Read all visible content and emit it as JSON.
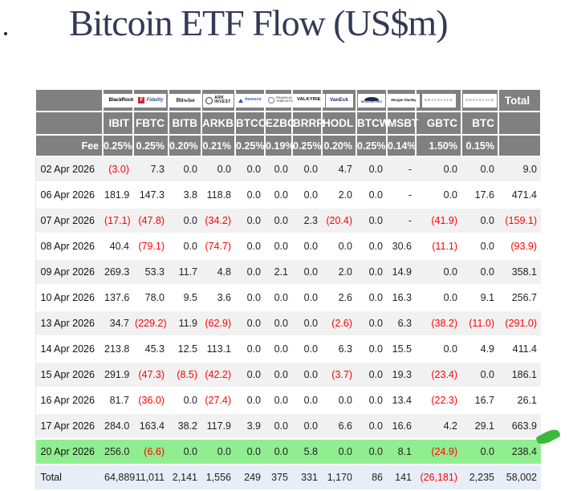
{
  "title": "Bitcoin ETF Flow (US$m)",
  "colors": {
    "header_gray": "#808080",
    "negative_red": "#ff0000",
    "highlight_green": "#90ee90",
    "total_row_bg": "#e8eef8",
    "stripe_gray": "#f1f1f1",
    "title_navy": "#333a56",
    "pen_mark_green": "#3db83d"
  },
  "table": {
    "fee_label": "Fee",
    "total_header_label": "Total",
    "columns": [
      {
        "ticker": "IBIT",
        "fee": "0.25%",
        "brand": "BlackRock"
      },
      {
        "ticker": "FBTC",
        "fee": "0.25%",
        "brand": "Fidelity",
        "brand_initial": "F"
      },
      {
        "ticker": "BITB",
        "fee": "0.20%",
        "brand": "Bitwise"
      },
      {
        "ticker": "ARKB",
        "fee": "0.21%",
        "brand": "ARK\nINVEST"
      },
      {
        "ticker": "BTCO",
        "fee": "0.25%",
        "brand": "Invesco"
      },
      {
        "ticker": "EZBC",
        "fee": "0.19%",
        "brand": "FRANKLIN\nTEMPLETON"
      },
      {
        "ticker": "BRRR",
        "fee": "0.25%",
        "brand": "VALKYRIE"
      },
      {
        "ticker": "HODL",
        "fee": "0.20%",
        "brand": "VanEck"
      },
      {
        "ticker": "BTCW",
        "fee": "0.25%",
        "brand": "WISDOMTREE"
      },
      {
        "ticker": "MSBT",
        "fee": "0.14%",
        "brand": "Morgan Stanley"
      },
      {
        "ticker": "GBTC",
        "fee": "1.50%",
        "brand": "GRAYSCALE"
      },
      {
        "ticker": "BTC",
        "fee": "0.15%",
        "brand": "GRAYSCALE"
      }
    ],
    "rows": [
      {
        "date": "02 Apr 2026",
        "values": [
          "(3.0)",
          "7.3",
          "0.0",
          "0.0",
          "0.0",
          "0.0",
          "0.0",
          "4.7",
          "0.0",
          "-",
          "0.0",
          "0.0",
          "9.0"
        ]
      },
      {
        "date": "06 Apr 2026",
        "values": [
          "181.9",
          "147.3",
          "3.8",
          "118.8",
          "0.0",
          "0.0",
          "0.0",
          "2.0",
          "0.0",
          "-",
          "0.0",
          "17.6",
          "471.4"
        ]
      },
      {
        "date": "07 Apr 2026",
        "values": [
          "(17.1)",
          "(47.8)",
          "0.0",
          "(34.2)",
          "0.0",
          "0.0",
          "2.3",
          "(20.4)",
          "0.0",
          "-",
          "(41.9)",
          "0.0",
          "(159.1)"
        ]
      },
      {
        "date": "08 Apr 2026",
        "values": [
          "40.4",
          "(79.1)",
          "0.0",
          "(74.7)",
          "0.0",
          "0.0",
          "0.0",
          "0.0",
          "0.0",
          "30.6",
          "(11.1)",
          "0.0",
          "(93.9)"
        ]
      },
      {
        "date": "09 Apr 2026",
        "values": [
          "269.3",
          "53.3",
          "11.7",
          "4.8",
          "0.0",
          "2.1",
          "0.0",
          "2.0",
          "0.0",
          "14.9",
          "0.0",
          "0.0",
          "358.1"
        ]
      },
      {
        "date": "10 Apr 2026",
        "values": [
          "137.6",
          "78.0",
          "9.5",
          "3.6",
          "0.0",
          "0.0",
          "0.0",
          "2.6",
          "0.0",
          "16.3",
          "0.0",
          "9.1",
          "256.7"
        ]
      },
      {
        "date": "13 Apr 2026",
        "values": [
          "34.7",
          "(229.2)",
          "11.9",
          "(62.9)",
          "0.0",
          "0.0",
          "0.0",
          "(2.6)",
          "0.0",
          "6.3",
          "(38.2)",
          "(11.0)",
          "(291.0)"
        ]
      },
      {
        "date": "14 Apr 2026",
        "values": [
          "213.8",
          "45.3",
          "12.5",
          "113.1",
          "0.0",
          "0.0",
          "0.0",
          "6.3",
          "0.0",
          "15.5",
          "0.0",
          "4.9",
          "411.4"
        ]
      },
      {
        "date": "15 Apr 2026",
        "values": [
          "291.9",
          "(47.3)",
          "(8.5)",
          "(42.2)",
          "0.0",
          "0.0",
          "0.0",
          "(3.7)",
          "0.0",
          "19.3",
          "(23.4)",
          "0.0",
          "186.1"
        ]
      },
      {
        "date": "16 Apr 2026",
        "values": [
          "81.7",
          "(36.0)",
          "0.0",
          "(27.4)",
          "0.0",
          "0.0",
          "0.0",
          "0.0",
          "0.0",
          "13.4",
          "(22.3)",
          "16.7",
          "26.1"
        ]
      },
      {
        "date": "17 Apr 2026",
        "values": [
          "284.0",
          "163.4",
          "38.2",
          "117.9",
          "3.9",
          "0.0",
          "0.0",
          "6.6",
          "0.0",
          "16.6",
          "4.2",
          "29.1",
          "663.9"
        ]
      },
      {
        "date": "20 Apr 2026",
        "highlight": "green",
        "values": [
          "256.0",
          "(6.6)",
          "0.0",
          "0.0",
          "0.0",
          "0.0",
          "5.8",
          "0.0",
          "0.0",
          "8.1",
          "(24.9)",
          "0.0",
          "238.4"
        ]
      }
    ],
    "total_row": {
      "label": "Total",
      "values": [
        "64,889",
        "11,011",
        "2,141",
        "1,556",
        "249",
        "375",
        "331",
        "1,170",
        "86",
        "141",
        "(26,181)",
        "2,235",
        "58,002"
      ]
    }
  },
  "annotations": {
    "pen_mark": "green brush stroke next to 20 Apr 2026 row"
  }
}
